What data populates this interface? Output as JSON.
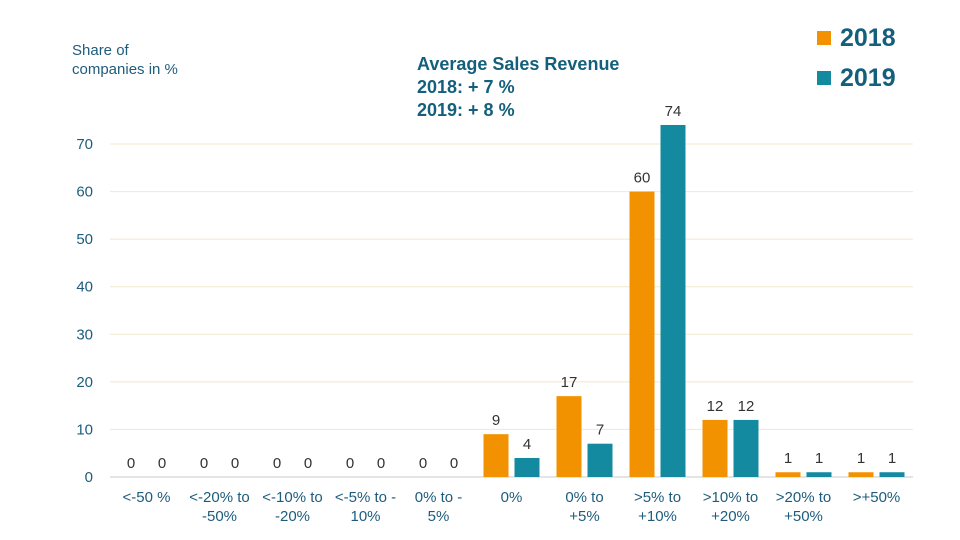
{
  "chart_data": {
    "type": "bar",
    "title": "Average Sales Revenue",
    "subtitle_lines": [
      "2018: + 7 %",
      "2019: + 8 %"
    ],
    "ylabel": "Share of\ncompanies in %",
    "xlabel": "",
    "ylim": [
      0,
      70
    ],
    "yticks": [
      0,
      10,
      20,
      30,
      40,
      50,
      60,
      70
    ],
    "grid": true,
    "legend_position": "top-right",
    "categories": [
      [
        "<-50 %",
        ""
      ],
      [
        "<-20% to",
        "-50%"
      ],
      [
        "<-10% to",
        "-20%"
      ],
      [
        "<-5% to -",
        "10%"
      ],
      [
        "0% to -",
        "5%"
      ],
      [
        "0%",
        ""
      ],
      [
        "0% to",
        "+5%"
      ],
      [
        ">5% to",
        "+10%"
      ],
      [
        ">10% to",
        "+20%"
      ],
      [
        ">20% to",
        "+50%"
      ],
      [
        ">+50%",
        ""
      ]
    ],
    "series": [
      {
        "name": "2018",
        "color": "#f39200",
        "values": [
          0,
          0,
          0,
          0,
          0,
          9,
          17,
          60,
          12,
          1,
          1
        ]
      },
      {
        "name": "2019",
        "color": "#138a9f",
        "values": [
          0,
          0,
          0,
          0,
          0,
          4,
          7,
          74,
          12,
          1,
          1
        ]
      }
    ]
  }
}
